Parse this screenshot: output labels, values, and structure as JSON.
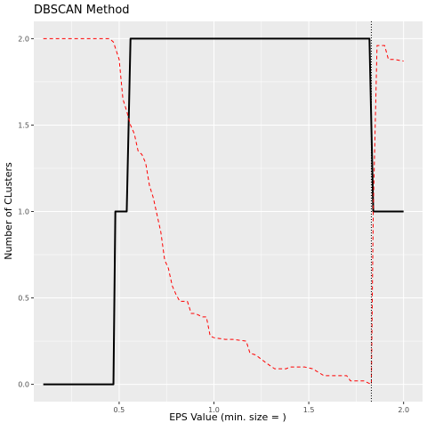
{
  "chart_data": {
    "type": "line",
    "title": "DBSCAN Method",
    "xlabel": "EPS Value (min. size = )",
    "ylabel": "Number of CLusters",
    "xlim": [
      0.05,
      2.1
    ],
    "ylim": [
      -0.1,
      2.1
    ],
    "x_ticks": [
      0.5,
      1.0,
      1.5,
      2.0
    ],
    "x_tick_labels": [
      "0.5",
      "1.0",
      "1.5",
      "2.0"
    ],
    "y_ticks": [
      0.0,
      0.5,
      1.0,
      1.5,
      2.0
    ],
    "y_tick_labels": [
      "0.0",
      "0.5",
      "1.0",
      "1.5",
      "2.0"
    ],
    "grid": true,
    "background": "#ebebeb",
    "vline_x": 1.83,
    "series": [
      {
        "style": "solid",
        "color": "#000000",
        "points": [
          [
            0.1,
            0.0
          ],
          [
            0.47,
            0.0
          ],
          [
            0.48,
            1.0
          ],
          [
            0.54,
            1.0
          ],
          [
            0.56,
            2.0
          ],
          [
            1.82,
            2.0
          ],
          [
            1.84,
            1.0
          ],
          [
            2.0,
            1.0
          ]
        ]
      },
      {
        "style": "dashed",
        "color": "#ff0000",
        "points": [
          [
            0.1,
            2.0
          ],
          [
            0.25,
            2.0
          ],
          [
            0.45,
            2.0
          ],
          [
            0.47,
            1.98
          ],
          [
            0.5,
            1.88
          ],
          [
            0.52,
            1.65
          ],
          [
            0.54,
            1.58
          ],
          [
            0.56,
            1.5
          ],
          [
            0.58,
            1.45
          ],
          [
            0.6,
            1.35
          ],
          [
            0.62,
            1.33
          ],
          [
            0.64,
            1.28
          ],
          [
            0.66,
            1.15
          ],
          [
            0.68,
            1.08
          ],
          [
            0.7,
            0.98
          ],
          [
            0.72,
            0.88
          ],
          [
            0.74,
            0.72
          ],
          [
            0.76,
            0.67
          ],
          [
            0.78,
            0.57
          ],
          [
            0.8,
            0.52
          ],
          [
            0.82,
            0.48
          ],
          [
            0.86,
            0.48
          ],
          [
            0.88,
            0.41
          ],
          [
            0.9,
            0.41
          ],
          [
            0.94,
            0.39
          ],
          [
            0.96,
            0.39
          ],
          [
            0.98,
            0.28
          ],
          [
            1.0,
            0.27
          ],
          [
            1.06,
            0.26
          ],
          [
            1.1,
            0.26
          ],
          [
            1.17,
            0.25
          ],
          [
            1.19,
            0.18
          ],
          [
            1.22,
            0.17
          ],
          [
            1.28,
            0.12
          ],
          [
            1.32,
            0.09
          ],
          [
            1.38,
            0.09
          ],
          [
            1.4,
            0.1
          ],
          [
            1.48,
            0.1
          ],
          [
            1.52,
            0.09
          ],
          [
            1.58,
            0.05
          ],
          [
            1.7,
            0.05
          ],
          [
            1.72,
            0.02
          ],
          [
            1.79,
            0.02
          ],
          [
            1.81,
            0.01
          ],
          [
            1.83,
            0.0
          ],
          [
            1.84,
            1.0
          ],
          [
            1.86,
            1.96
          ],
          [
            1.9,
            1.96
          ],
          [
            1.92,
            1.88
          ],
          [
            1.95,
            1.88
          ],
          [
            2.0,
            1.87
          ]
        ]
      }
    ]
  }
}
